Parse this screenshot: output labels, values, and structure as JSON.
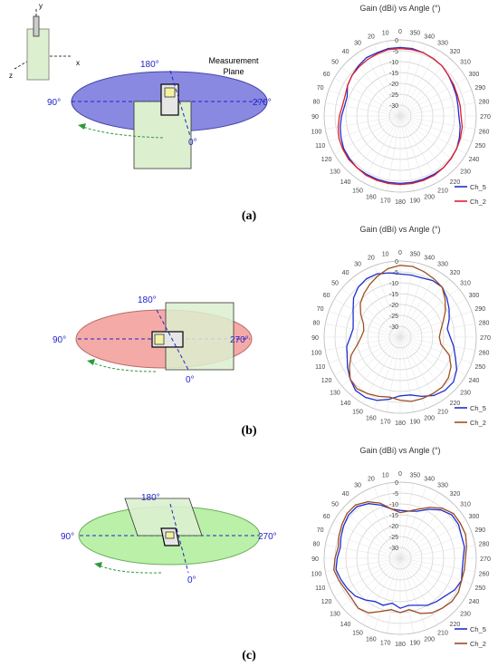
{
  "axis_scheme": {
    "label_x": "x",
    "label_y": "y",
    "label_z": "z"
  },
  "measurement_plane_label_line1": "Measurement",
  "measurement_plane_label_line2": "Plane",
  "angle_labels": {
    "a180": "180°",
    "a90": "90°",
    "a270": "270°",
    "a0": "0°"
  },
  "captions": {
    "a": "(a)",
    "b": "(b)",
    "c": "(c)"
  },
  "colors": {
    "blue_plane": "#6a6ad8",
    "red_plane": "#ef9a96",
    "green_plane": "#b0ec9c",
    "ch5": "#1f2fd0",
    "ch2_a": "#e0202a",
    "ch2_c": "#9b4a1e",
    "angle_text": "#2323c8",
    "arrow": "#2f9a3a"
  },
  "chart_data": [
    {
      "type": "polar-line",
      "title": "Gain (dBi) vs Angle (°)",
      "angle_ticks": [
        "0",
        "10",
        "20",
        "30",
        "40",
        "50",
        "60",
        "70",
        "80",
        "90",
        "100",
        "110",
        "120",
        "130",
        "140",
        "150",
        "160",
        "170",
        "180",
        "190",
        "200",
        "210",
        "220",
        "230",
        "240",
        "250",
        "260",
        "270",
        "280",
        "290",
        "300",
        "310",
        "320",
        "330",
        "340",
        "350"
      ],
      "radial_ticks": [
        "0",
        "-5",
        "-10",
        "-15",
        "-20",
        "-25",
        "-30"
      ],
      "rlim": [
        -35,
        0
      ],
      "angles": [
        0,
        10,
        20,
        30,
        40,
        50,
        60,
        70,
        80,
        90,
        100,
        110,
        120,
        130,
        140,
        150,
        160,
        170,
        180,
        190,
        200,
        210,
        220,
        230,
        240,
        250,
        260,
        270,
        280,
        290,
        300,
        310,
        320,
        330,
        340,
        350
      ],
      "series": [
        {
          "name": "Ch_5",
          "color": "#1f2fd0",
          "values": [
            -3.5,
            -3.5,
            -4,
            -4,
            -5,
            -6,
            -7,
            -9,
            -9,
            -8,
            -7,
            -6,
            -5,
            -4.5,
            -4,
            -4,
            -4,
            -4,
            -4,
            -4,
            -4,
            -4,
            -4,
            -4.5,
            -5,
            -6,
            -7,
            -8,
            -8,
            -7.5,
            -7,
            -6,
            -5,
            -4.5,
            -4,
            -3.5
          ]
        },
        {
          "name": "Ch_2",
          "color": "#e0202a",
          "values": [
            -4,
            -4,
            -4.5,
            -5,
            -5.5,
            -6,
            -7,
            -8,
            -8,
            -7,
            -6,
            -5,
            -4.5,
            -4,
            -4,
            -3.5,
            -3.5,
            -3.5,
            -3.5,
            -3.5,
            -3.5,
            -3.5,
            -4,
            -4.5,
            -5,
            -5.5,
            -6,
            -7,
            -7,
            -7,
            -6.5,
            -6,
            -5,
            -4.5,
            -4,
            -4
          ]
        }
      ],
      "legend_position": "bottom-right"
    },
    {
      "type": "polar-line",
      "title": "Gain (dBi) vs Angle (°)",
      "angle_ticks": [
        "0",
        "10",
        "20",
        "30",
        "40",
        "50",
        "60",
        "70",
        "80",
        "90",
        "100",
        "110",
        "120",
        "130",
        "140",
        "150",
        "160",
        "170",
        "180",
        "190",
        "200",
        "210",
        "220",
        "230",
        "240",
        "250",
        "260",
        "270",
        "280",
        "290",
        "300",
        "310",
        "320",
        "330",
        "340",
        "350"
      ],
      "radial_ticks": [
        "0",
        "-5",
        "-10",
        "-15",
        "-20",
        "-25",
        "-30"
      ],
      "rlim": [
        -35,
        0
      ],
      "angles": [
        0,
        10,
        20,
        30,
        40,
        50,
        60,
        70,
        80,
        90,
        100,
        110,
        120,
        130,
        140,
        150,
        160,
        170,
        180,
        190,
        200,
        210,
        220,
        230,
        240,
        250,
        260,
        270,
        280,
        290,
        300,
        310,
        320,
        330,
        340,
        350
      ],
      "series": [
        {
          "name": "Ch_5",
          "color": "#1f2fd0",
          "values": [
            -6,
            -5,
            -4,
            -4,
            -5,
            -7,
            -10,
            -12,
            -13,
            -12,
            -10,
            -9,
            -7,
            -5,
            -3,
            -3,
            -4,
            -6,
            -8,
            -8,
            -6,
            -4,
            -3,
            -3,
            -5,
            -8,
            -10,
            -12,
            -13,
            -11,
            -9,
            -7,
            -5,
            -5,
            -6,
            -6
          ]
        },
        {
          "name": "Ch_2",
          "color": "#a05020",
          "values": [
            -2,
            -3,
            -5,
            -7,
            -9,
            -11,
            -14,
            -17,
            -18,
            -17,
            -15,
            -11,
            -8,
            -5,
            -4,
            -5,
            -6,
            -7,
            -6,
            -5,
            -5,
            -5,
            -5,
            -6,
            -8,
            -11,
            -16,
            -17,
            -16,
            -14,
            -11,
            -8,
            -5,
            -4,
            -3,
            -2
          ]
        }
      ],
      "legend_position": "bottom-right"
    },
    {
      "type": "polar-line",
      "title": "Gain (dBi) vs Angle (°)",
      "angle_ticks": [
        "0",
        "10",
        "20",
        "30",
        "40",
        "50",
        "60",
        "70",
        "80",
        "90",
        "100",
        "110",
        "120",
        "130",
        "140",
        "150",
        "160",
        "170",
        "180",
        "190",
        "200",
        "210",
        "220",
        "230",
        "240",
        "250",
        "260",
        "270",
        "280",
        "290",
        "300",
        "310",
        "320",
        "330",
        "340",
        "350"
      ],
      "radial_ticks": [
        "0",
        "-5",
        "-10",
        "-15",
        "-20",
        "-25",
        "-30"
      ],
      "rlim": [
        -35,
        0
      ],
      "angles": [
        0,
        10,
        20,
        30,
        40,
        50,
        60,
        70,
        80,
        90,
        100,
        110,
        120,
        130,
        140,
        150,
        160,
        170,
        180,
        190,
        200,
        210,
        220,
        230,
        240,
        250,
        260,
        270,
        280,
        290,
        300,
        310,
        320,
        330,
        340,
        350
      ],
      "series": [
        {
          "name": "Ch_5",
          "color": "#1f2fd0",
          "values": [
            -13,
            -12,
            -9,
            -6,
            -4,
            -4,
            -5,
            -6,
            -7,
            -6,
            -5,
            -6,
            -7,
            -8,
            -10,
            -12,
            -12,
            -14,
            -12,
            -13,
            -12,
            -10,
            -9,
            -8,
            -6,
            -5,
            -6,
            -6,
            -5,
            -5,
            -4,
            -4,
            -6,
            -9,
            -12,
            -13
          ]
        },
        {
          "name": "Ch_2",
          "color": "#9b4a1e",
          "values": [
            -14,
            -12,
            -8,
            -5,
            -3,
            -3,
            -4,
            -5,
            -6,
            -5,
            -4,
            -5,
            -6,
            -6,
            -5,
            -6,
            -9,
            -11,
            -10,
            -11,
            -8,
            -6,
            -5,
            -4,
            -4,
            -5,
            -5,
            -5,
            -4,
            -3,
            -3,
            -3,
            -5,
            -8,
            -11,
            -13
          ]
        }
      ],
      "legend_position": "bottom-right"
    }
  ]
}
